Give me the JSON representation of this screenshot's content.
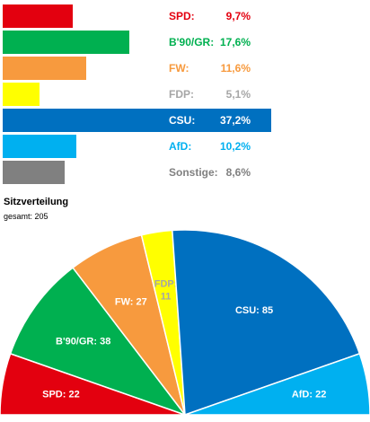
{
  "chart_data": [
    {
      "type": "bar",
      "orientation": "horizontal",
      "categories": [
        "SPD:",
        "B'90/GR:",
        "FW:",
        "FDP:",
        "CSU:",
        "AfD:",
        "Sonstige:"
      ],
      "values": [
        9.7,
        17.6,
        11.6,
        5.1,
        37.2,
        10.2,
        8.6
      ],
      "value_labels": [
        "9,7%",
        "17,6%",
        "11,6%",
        "5,1%",
        "37,2%",
        "10,2%",
        "8,6%"
      ],
      "colors": [
        "#e3000f",
        "#00b050",
        "#f79a3e",
        "#ffff00",
        "#0070c0",
        "#00b0f0",
        "#808080"
      ],
      "label_colors": [
        "#e3000f",
        "#00b050",
        "#f79a3e",
        "#a6a6a6",
        "#ffffff",
        "#00b0f0",
        "#808080"
      ],
      "highlight_row": "CSU:",
      "highlight_color": "#0070c0",
      "title": "",
      "xlabel": "",
      "ylabel": ""
    },
    {
      "type": "pie",
      "subtype": "semicircle",
      "title": "Sitzverteilung",
      "subtitle": "gesamt: 205",
      "categories": [
        "SPD",
        "B'90/GR",
        "FW",
        "FDP",
        "CSU",
        "AfD"
      ],
      "values": [
        22,
        38,
        27,
        11,
        85,
        22
      ],
      "slice_labels": [
        "SPD:  22",
        "B'90/GR: 38",
        "FW: 27",
        "FDP: 11",
        "CSU: 85",
        "AfD: 22"
      ],
      "colors": [
        "#e3000f",
        "#00b050",
        "#f79a3e",
        "#ffff00",
        "#0070c0",
        "#00b0f0"
      ],
      "label_colors": [
        "#ffffff",
        "#ffffff",
        "#ffffff",
        "#a6a6a6",
        "#ffffff",
        "#ffffff"
      ]
    }
  ]
}
